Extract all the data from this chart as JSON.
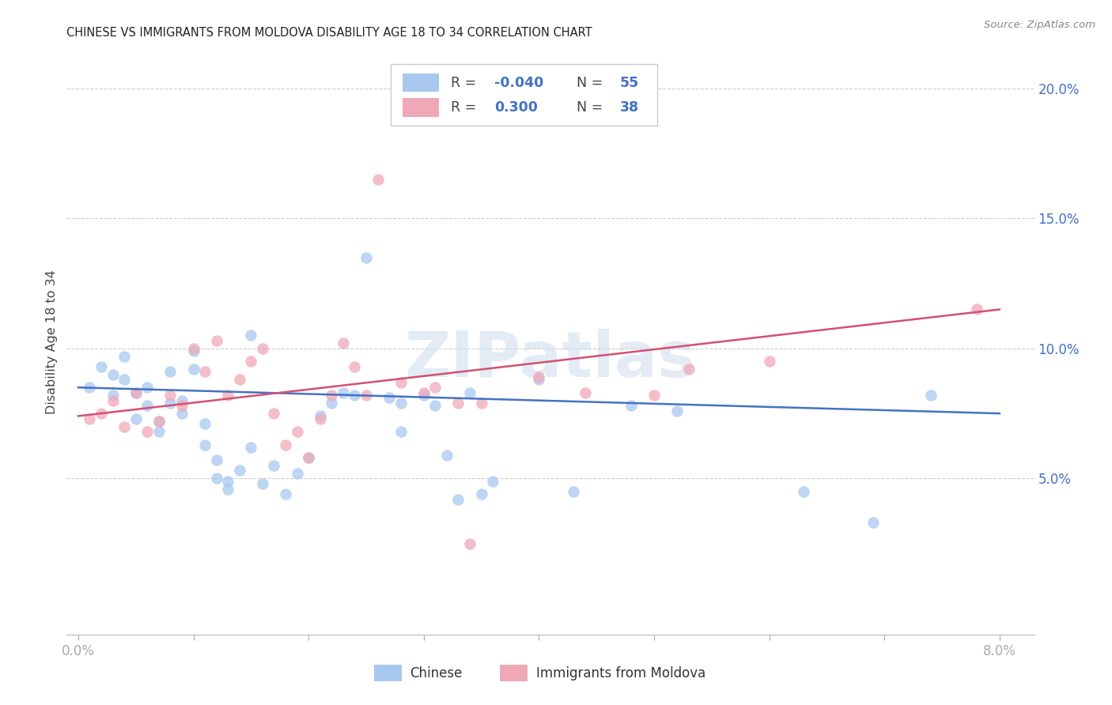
{
  "title": "CHINESE VS IMMIGRANTS FROM MOLDOVA DISABILITY AGE 18 TO 34 CORRELATION CHART",
  "source": "Source: ZipAtlas.com",
  "ylabel": "Disability Age 18 to 34",
  "xlim": [
    -0.001,
    0.083
  ],
  "ylim": [
    -0.01,
    0.215
  ],
  "yticks": [
    0.05,
    0.1,
    0.15,
    0.2
  ],
  "ytick_labels": [
    "5.0%",
    "10.0%",
    "15.0%",
    "20.0%"
  ],
  "xticks": [
    0.0,
    0.01,
    0.02,
    0.03,
    0.04,
    0.05,
    0.06,
    0.07,
    0.08
  ],
  "xtick_labels_show": [
    "0.0%",
    "",
    "",
    "",
    "",
    "",
    "",
    "",
    "8.0%"
  ],
  "watermark": "ZIPatlas",
  "chinese_color": "#a8c8f0",
  "moldova_color": "#f0a8b8",
  "chinese_line_color": "#4472c4",
  "moldova_line_color": "#d45070",
  "chinese_R": -0.04,
  "moldova_R": 0.3,
  "legend_R1": "R = -0.040",
  "legend_N1": "N = 55",
  "legend_R2": "R =  0.300",
  "legend_N2": "N = 38",
  "chinese_x": [
    0.001,
    0.002,
    0.003,
    0.003,
    0.004,
    0.004,
    0.005,
    0.005,
    0.006,
    0.006,
    0.007,
    0.007,
    0.008,
    0.008,
    0.009,
    0.009,
    0.01,
    0.01,
    0.011,
    0.011,
    0.012,
    0.012,
    0.013,
    0.013,
    0.014,
    0.015,
    0.015,
    0.016,
    0.017,
    0.018,
    0.019,
    0.02,
    0.021,
    0.022,
    0.023,
    0.024,
    0.025,
    0.027,
    0.028,
    0.03,
    0.031,
    0.032,
    0.033,
    0.034,
    0.036,
    0.04,
    0.042,
    0.043,
    0.048,
    0.052,
    0.035,
    0.028,
    0.063,
    0.069,
    0.074
  ],
  "chinese_y": [
    0.085,
    0.093,
    0.09,
    0.082,
    0.097,
    0.088,
    0.083,
    0.073,
    0.078,
    0.085,
    0.072,
    0.068,
    0.091,
    0.079,
    0.08,
    0.075,
    0.099,
    0.092,
    0.063,
    0.071,
    0.05,
    0.057,
    0.046,
    0.049,
    0.053,
    0.062,
    0.105,
    0.048,
    0.055,
    0.044,
    0.052,
    0.058,
    0.074,
    0.079,
    0.083,
    0.082,
    0.135,
    0.081,
    0.068,
    0.082,
    0.078,
    0.059,
    0.042,
    0.083,
    0.049,
    0.088,
    0.194,
    0.045,
    0.078,
    0.076,
    0.044,
    0.079,
    0.045,
    0.033,
    0.082
  ],
  "moldova_x": [
    0.001,
    0.002,
    0.003,
    0.004,
    0.005,
    0.006,
    0.007,
    0.008,
    0.009,
    0.01,
    0.011,
    0.012,
    0.013,
    0.014,
    0.015,
    0.016,
    0.017,
    0.018,
    0.019,
    0.02,
    0.021,
    0.022,
    0.023,
    0.024,
    0.025,
    0.026,
    0.028,
    0.03,
    0.031,
    0.033,
    0.034,
    0.035,
    0.04,
    0.044,
    0.05,
    0.053,
    0.06,
    0.078
  ],
  "moldova_y": [
    0.073,
    0.075,
    0.08,
    0.07,
    0.083,
    0.068,
    0.072,
    0.082,
    0.078,
    0.1,
    0.091,
    0.103,
    0.082,
    0.088,
    0.095,
    0.1,
    0.075,
    0.063,
    0.068,
    0.058,
    0.073,
    0.082,
    0.102,
    0.093,
    0.082,
    0.165,
    0.087,
    0.083,
    0.085,
    0.079,
    0.025,
    0.079,
    0.089,
    0.083,
    0.082,
    0.092,
    0.095,
    0.115
  ]
}
